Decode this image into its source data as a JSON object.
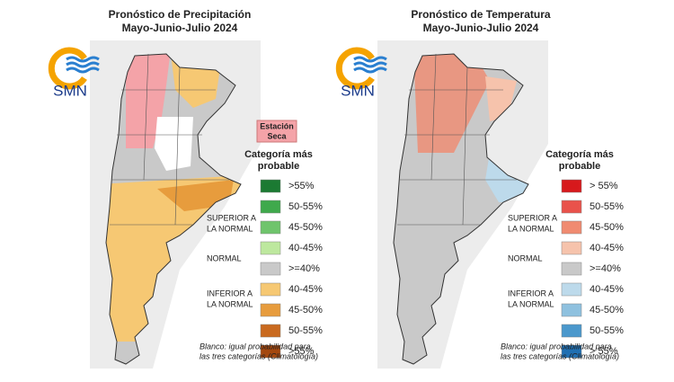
{
  "panels": [
    {
      "title": [
        "Pronóstico de Precipitación",
        "Mayo-Junio-Julio 2024"
      ],
      "logo": "SMN",
      "badge": [
        "Estación",
        "Seca"
      ],
      "legend_title": [
        "Categoría más",
        "probable"
      ],
      "legend": [
        {
          "label": ">55%",
          "color": "#1b7a32"
        },
        {
          "label": "50-55%",
          "color": "#3fa94c"
        },
        {
          "label": "45-50%",
          "color": "#6fc46c"
        },
        {
          "label": "40-45%",
          "color": "#bde89e"
        },
        {
          "label": ">=40%",
          "color": "#c9c9c9"
        },
        {
          "label": "40-45%",
          "color": "#f6c873"
        },
        {
          "label": "45-50%",
          "color": "#e79c3d"
        },
        {
          "label": "50-55%",
          "color": "#c96a1f"
        },
        {
          "label": ">55%",
          "color": "#a4480f"
        }
      ],
      "groups": [
        [
          "SUPERIOR A",
          "LA NORMAL"
        ],
        [
          "NORMAL"
        ],
        [
          "INFERIOR A",
          "LA NORMAL"
        ]
      ],
      "note": [
        "Blanco: igual probabilidad para",
        "las tres categorías (Climatología)"
      ]
    },
    {
      "title": [
        "Pronóstico de Temperatura",
        "Mayo-Junio-Julio 2024"
      ],
      "logo": "SMN",
      "legend_title": [
        "Categoría más",
        "probable"
      ],
      "legend": [
        {
          "label": "> 55%",
          "color": "#d7191c"
        },
        {
          "label": "50-55%",
          "color": "#e9524b"
        },
        {
          "label": "45-50%",
          "color": "#f08b71"
        },
        {
          "label": "40-45%",
          "color": "#f6c3ac"
        },
        {
          "label": ">=40%",
          "color": "#c9c9c9"
        },
        {
          "label": "40-45%",
          "color": "#bddaeb"
        },
        {
          "label": "45-50%",
          "color": "#8fc1df"
        },
        {
          "label": "50-55%",
          "color": "#4b98cc"
        },
        {
          "label": "> 55%",
          "color": "#1f6fb2"
        }
      ],
      "groups": [
        [
          "SUPERIOR A",
          "LA NORMAL"
        ],
        [
          "NORMAL"
        ],
        [
          "INFERIOR A",
          "LA NORMAL"
        ]
      ],
      "note": [
        "Blanco: igual probabilidad para",
        "las tres categorías (Climatología)"
      ]
    }
  ]
}
